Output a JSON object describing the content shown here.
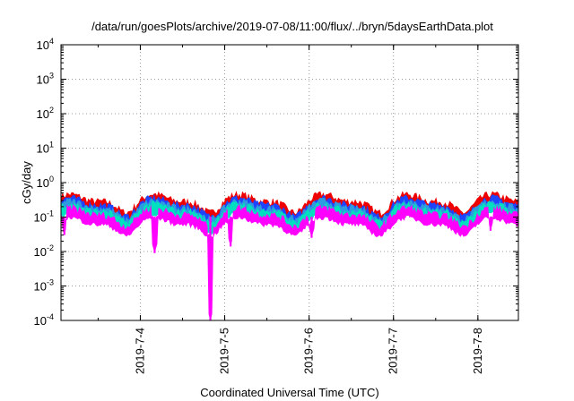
{
  "chart_data": {
    "type": "line",
    "title": "/data/run/goesPlots/archive/2019-07-08/11:00/flux/../bryn/5daysEarthData.plot",
    "xlabel": "Coordinated Universal Time (UTC)",
    "ylabel": "cGy/day",
    "yscale": "log",
    "ylim": [
      0.0001,
      10000
    ],
    "xlim": [
      3.06,
      8.48
    ],
    "grid": true,
    "x_ticks": [
      {
        "x": 4,
        "label": "2019-7-4"
      },
      {
        "x": 5,
        "label": "2019-7-5"
      },
      {
        "x": 6,
        "label": "2019-7-6"
      },
      {
        "x": 7,
        "label": "2019-7-7"
      },
      {
        "x": 8,
        "label": "2019-7-8"
      }
    ],
    "y_ticks": [
      {
        "value": 0.0001,
        "base": "10",
        "exp": "-4"
      },
      {
        "value": 0.001,
        "base": "10",
        "exp": "-3"
      },
      {
        "value": 0.01,
        "base": "10",
        "exp": "-2"
      },
      {
        "value": 0.1,
        "base": "10",
        "exp": "-1"
      },
      {
        "value": 1,
        "base": "10",
        "exp": "0"
      },
      {
        "value": 10,
        "base": "10",
        "exp": "1"
      },
      {
        "value": 100,
        "base": "10",
        "exp": "2"
      },
      {
        "value": 1000,
        "base": "10",
        "exp": "3"
      },
      {
        "value": 10000,
        "base": "10",
        "exp": "4"
      }
    ],
    "series": [
      {
        "color": "#ee0000",
        "level": 0.42
      },
      {
        "color": "#1e44ff",
        "level": 0.33
      },
      {
        "color": "#2e9adf",
        "level": 0.27
      },
      {
        "color": "#00e0c0",
        "level": 0.22
      },
      {
        "color": "#ff00ff",
        "level": 0.17,
        "dips": [
          {
            "x": 3.1,
            "y": 0.03
          },
          {
            "x": 4.17,
            "y": 0.009
          },
          {
            "x": 4.83,
            "y": 0.0001
          },
          {
            "x": 5.07,
            "y": 0.014
          },
          {
            "x": 6.03,
            "y": 0.025
          },
          {
            "x": 8.15,
            "y": 0.04
          }
        ]
      }
    ]
  }
}
